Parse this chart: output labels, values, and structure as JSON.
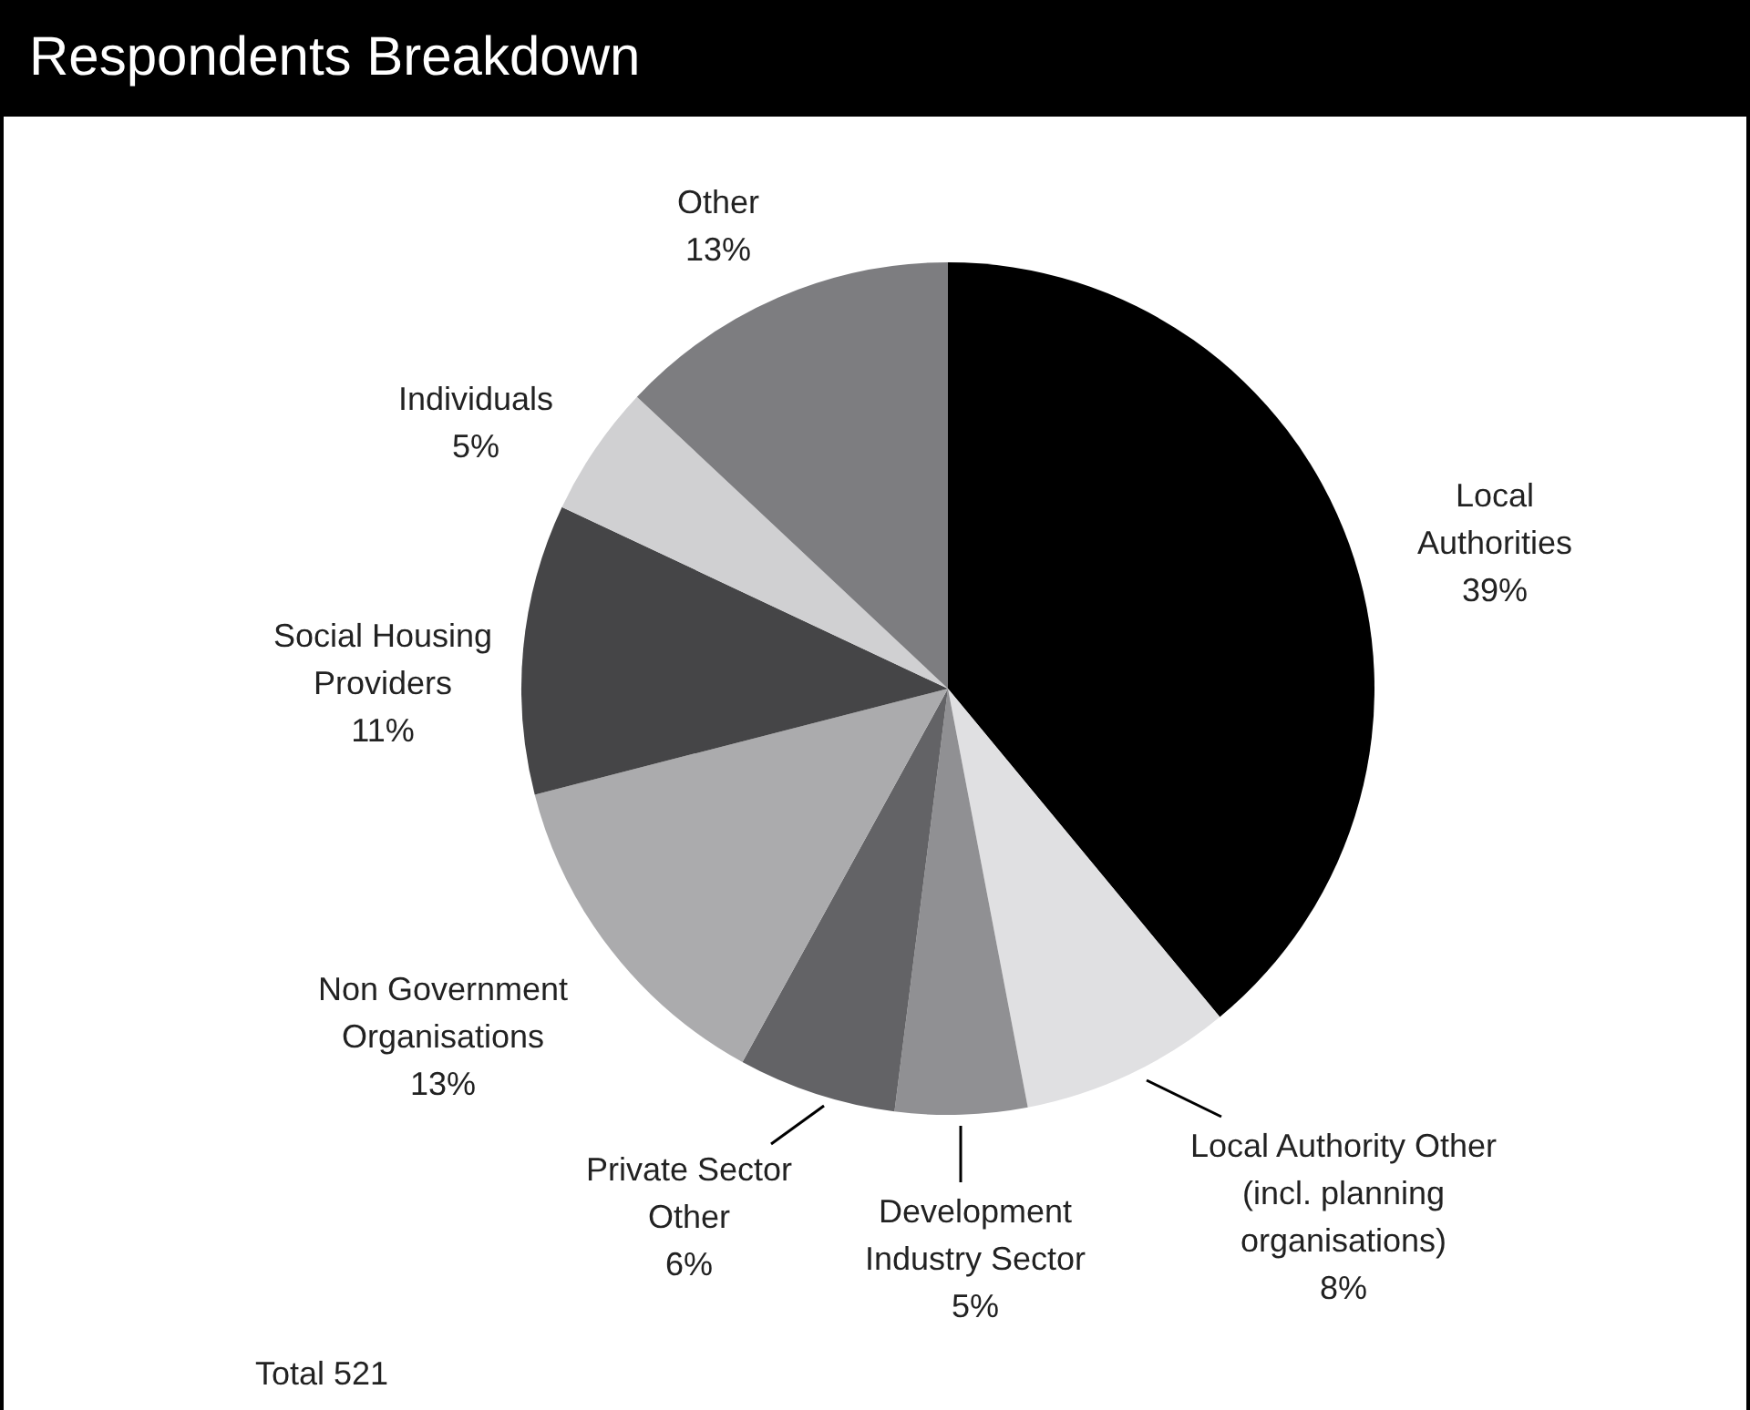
{
  "chart_data": {
    "type": "pie",
    "title": "Respondents Breakdown",
    "categories": [
      "Local Authorities",
      "Local Authority Other (incl. planning organisations)",
      "Development Industry Sector",
      "Private Sector Other",
      "Non Government Organisations",
      "Social Housing Providers",
      "Individuals",
      "Other"
    ],
    "values": [
      39,
      8,
      5,
      6,
      13,
      11,
      5,
      13
    ],
    "value_labels": [
      "39%",
      "8%",
      "5%",
      "6%",
      "13%",
      "11%",
      "5%",
      "13%"
    ],
    "colors": [
      "#000000",
      "#e0e0e2",
      "#909093",
      "#636366",
      "#ababad",
      "#454547",
      "#d0d0d2",
      "#7d7d80"
    ],
    "annotations": [
      "Total 521"
    ],
    "legend": false
  }
}
